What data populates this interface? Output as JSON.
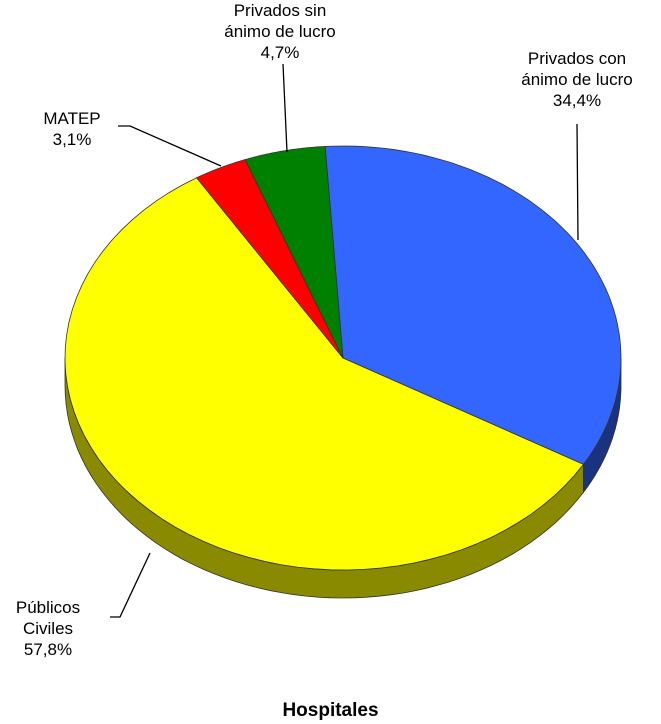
{
  "chart_data": {
    "type": "pie",
    "title": "Hospitales",
    "categories": [
      "Privados con ánimo de lucro",
      "Públicos Civiles",
      "MATEP",
      "Privados sin ánimo de lucro"
    ],
    "values": [
      34.4,
      57.8,
      3.1,
      4.7
    ],
    "value_labels": [
      "34,4%",
      "57,8%",
      "3,1%",
      "4,7%"
    ],
    "colors": [
      "#3366ff",
      "#ffff00",
      "#ff0000",
      "#008000"
    ],
    "side_colors": [
      "#1a3380",
      "#8a8a00",
      "#800000",
      "#004000"
    ]
  }
}
